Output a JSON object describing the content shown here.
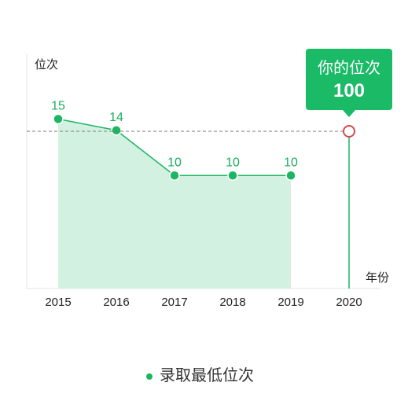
{
  "chart_data": {
    "type": "line",
    "ylabel": "位次",
    "xlabel": "年份",
    "categories": [
      "2015",
      "2016",
      "2017",
      "2018",
      "2019",
      "2020"
    ],
    "series": [
      {
        "name": "录取最低位次",
        "x": [
          "2015",
          "2016",
          "2017",
          "2018",
          "2019"
        ],
        "values": [
          15,
          14,
          10,
          10,
          10
        ],
        "area_fill": true
      }
    ],
    "highlight": {
      "x": "2020",
      "title": "你的位次",
      "value": 100,
      "value_text": "100"
    },
    "y_range": [
      0,
      30
    ],
    "grid": false,
    "legend_position": "bottom-center"
  },
  "colors": {
    "line": "#1cb663",
    "area": "#d3f1e0",
    "tooltip": "#1aba67",
    "marker_ring": "#d24a4a",
    "dashed": "#7a7a7a"
  }
}
